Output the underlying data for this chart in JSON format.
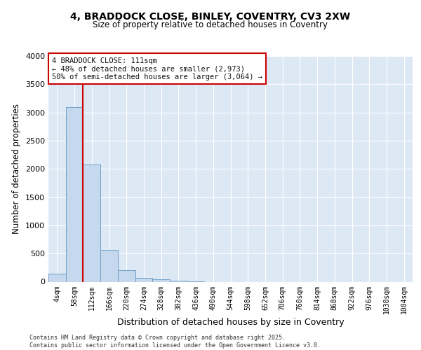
{
  "title_line1": "4, BRADDOCK CLOSE, BINLEY, COVENTRY, CV3 2XW",
  "title_line2": "Size of property relative to detached houses in Coventry",
  "xlabel": "Distribution of detached houses by size in Coventry",
  "ylabel": "Number of detached properties",
  "categories": [
    "4sqm",
    "58sqm",
    "112sqm",
    "166sqm",
    "220sqm",
    "274sqm",
    "328sqm",
    "382sqm",
    "436sqm",
    "490sqm",
    "544sqm",
    "598sqm",
    "652sqm",
    "706sqm",
    "760sqm",
    "814sqm",
    "868sqm",
    "922sqm",
    "976sqm",
    "1030sqm",
    "1084sqm"
  ],
  "values": [
    140,
    3100,
    2080,
    570,
    205,
    70,
    40,
    15,
    5,
    0,
    0,
    0,
    0,
    0,
    0,
    0,
    0,
    0,
    0,
    0,
    0
  ],
  "bar_color": "#c5d8ee",
  "bar_edge_color": "#6fa0c8",
  "vline_x_index": 1.5,
  "vline_color": "#cc0000",
  "annotation_text": "4 BRADDOCK CLOSE: 111sqm\n← 48% of detached houses are smaller (2,973)\n50% of semi-detached houses are larger (3,064) →",
  "annotation_box_color": "#cc0000",
  "annotation_text_color": "#111111",
  "ylim": [
    0,
    4000
  ],
  "yticks": [
    0,
    500,
    1000,
    1500,
    2000,
    2500,
    3000,
    3500,
    4000
  ],
  "background_color": "#dde8f5",
  "plot_bg_color": "#dde8f5",
  "grid_color": "#ffffff",
  "footer_line1": "Contains HM Land Registry data © Crown copyright and database right 2025.",
  "footer_line2": "Contains public sector information licensed under the Open Government Licence v3.0."
}
